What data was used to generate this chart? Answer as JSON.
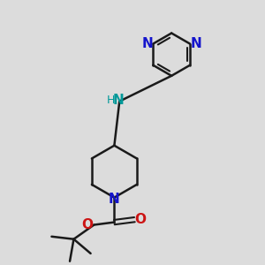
{
  "bg_color": "#dcdcdc",
  "bond_color": "#1a1a1a",
  "n_color": "#1414cc",
  "o_color": "#cc1414",
  "nh_color": "#009999",
  "figsize": [
    3.0,
    3.0
  ],
  "dpi": 100,
  "xlim": [
    0,
    10
  ],
  "ylim": [
    0,
    10
  ]
}
